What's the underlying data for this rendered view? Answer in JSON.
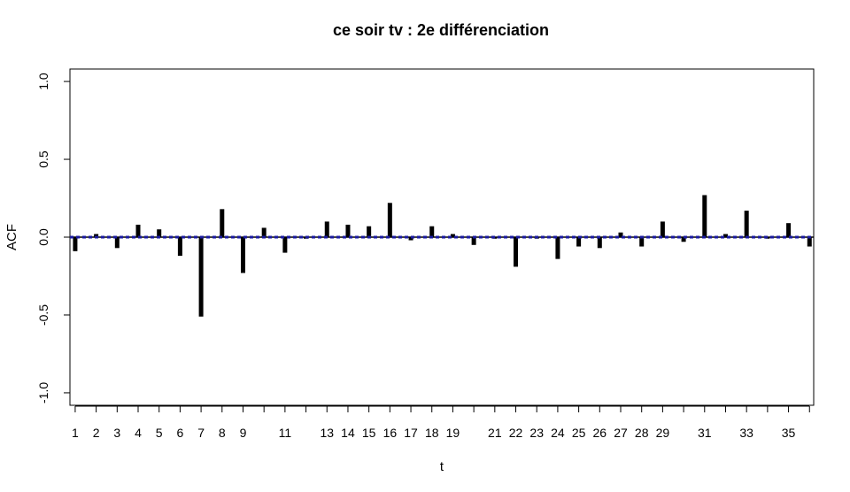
{
  "chart_data": {
    "type": "bar",
    "title": "ce soir tv : 2e différenciation",
    "xlabel": "t",
    "ylabel": "ACF",
    "xlim": [
      0.75,
      36.2
    ],
    "ylim": [
      -1.08,
      1.08
    ],
    "yticks": [
      -1.0,
      -0.5,
      0.0,
      0.5,
      1.0
    ],
    "ytick_labels": [
      "-1.0",
      "-0.5",
      "0.0",
      "0.5",
      "1.0"
    ],
    "xticks": [
      1,
      2,
      3,
      4,
      5,
      6,
      7,
      8,
      9,
      10,
      11,
      12,
      13,
      14,
      15,
      16,
      17,
      18,
      19,
      20,
      21,
      22,
      23,
      24,
      25,
      26,
      27,
      28,
      29,
      30,
      31,
      32,
      33,
      34,
      35,
      36
    ],
    "xtick_labels": [
      "1",
      "2",
      "3",
      "4",
      "5",
      "6",
      "7",
      "8",
      "9",
      "",
      "11",
      "",
      "13",
      "14",
      "15",
      "16",
      "17",
      "18",
      "19",
      "",
      "21",
      "22",
      "23",
      "24",
      "25",
      "26",
      "27",
      "28",
      "29",
      "",
      "31",
      "",
      "33",
      "",
      "35",
      ""
    ],
    "lags": [
      1,
      2,
      3,
      4,
      5,
      6,
      7,
      8,
      9,
      10,
      11,
      12,
      13,
      14,
      15,
      16,
      17,
      18,
      19,
      20,
      21,
      22,
      23,
      24,
      25,
      26,
      27,
      28,
      29,
      30,
      31,
      32,
      33,
      34,
      35,
      36
    ],
    "acf": [
      -0.09,
      0.02,
      -0.07,
      0.08,
      0.05,
      -0.12,
      -0.51,
      0.18,
      -0.23,
      0.06,
      -0.1,
      -0.01,
      0.1,
      0.08,
      0.07,
      0.22,
      -0.02,
      0.07,
      0.02,
      -0.05,
      -0.01,
      -0.19,
      -0.01,
      -0.14,
      -0.06,
      -0.07,
      0.03,
      -0.06,
      0.1,
      -0.03,
      0.27,
      0.02,
      0.17,
      -0.01,
      0.09,
      -0.06
    ],
    "confidence_bound": 0.004,
    "colors": {
      "bars": "#000000",
      "bound": "#1a1aa0",
      "zero": "#000000"
    }
  }
}
